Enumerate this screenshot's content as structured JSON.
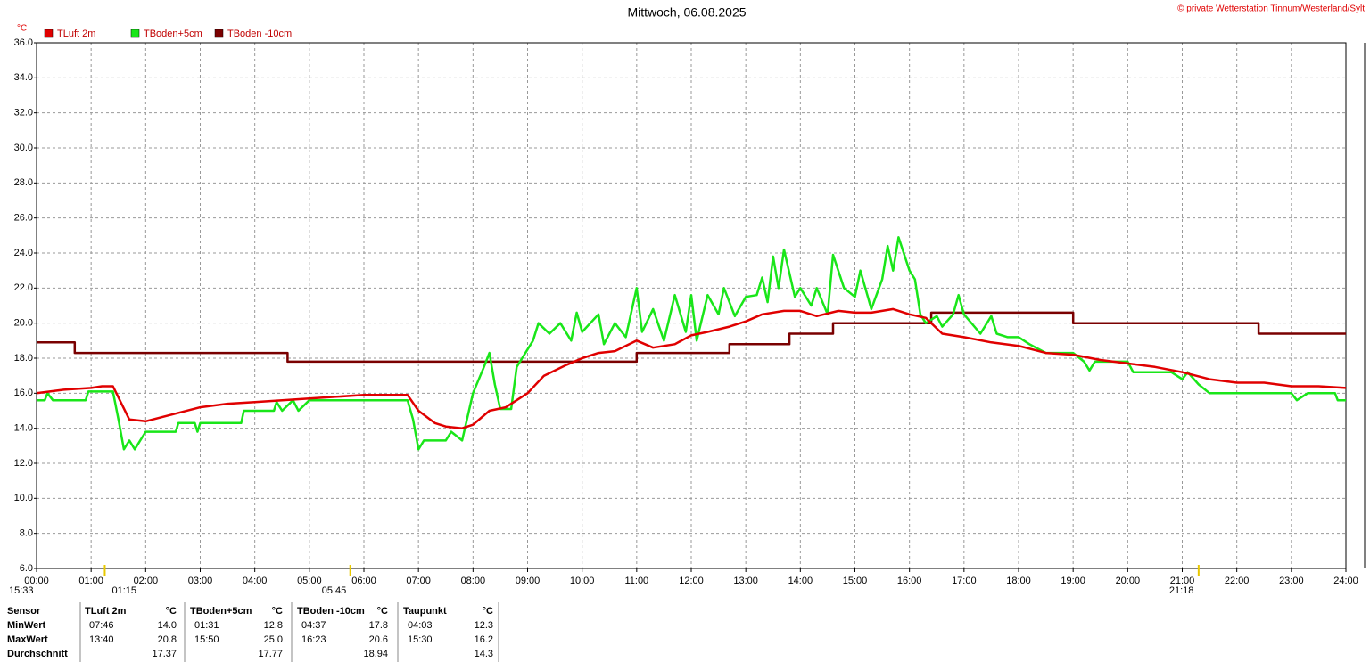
{
  "chart_data": {
    "type": "line",
    "title": "Mittwoch, 06.08.2025",
    "copyright": "© private Wetterstation Tinnum/Westerland/Sylt",
    "y_label": "°C",
    "xlim": [
      0,
      24
    ],
    "ylim": [
      6,
      36
    ],
    "grid": true,
    "legend": "top-left",
    "xticks": [
      {
        "value": 0,
        "label": "00:00"
      },
      {
        "value": 1,
        "label": "01:00"
      },
      {
        "value": 2,
        "label": "02:00"
      },
      {
        "value": 3,
        "label": "03:00"
      },
      {
        "value": 4,
        "label": "04:00"
      },
      {
        "value": 5,
        "label": "05:00"
      },
      {
        "value": 6,
        "label": "06:00"
      },
      {
        "value": 7,
        "label": "07:00"
      },
      {
        "value": 8,
        "label": "08:00"
      },
      {
        "value": 9,
        "label": "09:00"
      },
      {
        "value": 10,
        "label": "10:00"
      },
      {
        "value": 11,
        "label": "11:00"
      },
      {
        "value": 12,
        "label": "12:00"
      },
      {
        "value": 13,
        "label": "13:00"
      },
      {
        "value": 14,
        "label": "14:00"
      },
      {
        "value": 15,
        "label": "15:00"
      },
      {
        "value": 16,
        "label": "16:00"
      },
      {
        "value": 17,
        "label": "17:00"
      },
      {
        "value": 18,
        "label": "18:00"
      },
      {
        "value": 19,
        "label": "19:00"
      },
      {
        "value": 20,
        "label": "20:00"
      },
      {
        "value": 21,
        "label": "21:00"
      },
      {
        "value": 22,
        "label": "22:00"
      },
      {
        "value": 23,
        "label": "23:00"
      },
      {
        "value": 24,
        "label": "24:00"
      }
    ],
    "yticks": [
      {
        "value": 6,
        "label": "6.0"
      },
      {
        "value": 8,
        "label": "8.0"
      },
      {
        "value": 10,
        "label": "10.0"
      },
      {
        "value": 12,
        "label": "12.0"
      },
      {
        "value": 14,
        "label": "14.0"
      },
      {
        "value": 16,
        "label": "16.0"
      },
      {
        "value": 18,
        "label": "18.0"
      },
      {
        "value": 20,
        "label": "20.0"
      },
      {
        "value": 22,
        "label": "22.0"
      },
      {
        "value": 24,
        "label": "24.0"
      },
      {
        "value": 26,
        "label": "26.0"
      },
      {
        "value": 28,
        "label": "28.0"
      },
      {
        "value": 30,
        "label": "30.0"
      },
      {
        "value": 32,
        "label": "32.0"
      },
      {
        "value": 34,
        "label": "34.0"
      },
      {
        "value": 36,
        "label": "36.0"
      }
    ],
    "annotations": [
      {
        "label": "15:33"
      },
      {
        "label": "01:15",
        "x": 1.25
      },
      {
        "label": "05:45",
        "x": 5.75
      },
      {
        "label": "21:18",
        "x": 21.3
      }
    ],
    "series": [
      {
        "name": "TLuft 2m",
        "color": "#e00000",
        "x": [
          0,
          0.5,
          1.0,
          1.2,
          1.4,
          1.7,
          2.0,
          2.5,
          3.0,
          3.5,
          4.0,
          4.5,
          5.0,
          5.5,
          6.0,
          6.5,
          6.8,
          7.0,
          7.3,
          7.5,
          7.8,
          8.0,
          8.3,
          8.6,
          9.0,
          9.3,
          9.7,
          10.0,
          10.3,
          10.6,
          11.0,
          11.3,
          11.7,
          12.0,
          12.3,
          12.7,
          13.0,
          13.3,
          13.7,
          14.0,
          14.3,
          14.7,
          15.0,
          15.3,
          15.7,
          16.0,
          16.3,
          16.6,
          17.0,
          17.5,
          18.0,
          18.5,
          19.0,
          19.5,
          20.0,
          20.5,
          21.0,
          21.5,
          22.0,
          22.5,
          23.0,
          23.5,
          24
        ],
        "values": [
          16.0,
          16.2,
          16.3,
          16.4,
          16.4,
          14.5,
          14.4,
          14.8,
          15.2,
          15.4,
          15.5,
          15.6,
          15.7,
          15.8,
          15.9,
          15.9,
          15.9,
          15.0,
          14.3,
          14.1,
          14.0,
          14.2,
          15.0,
          15.2,
          16.0,
          17.0,
          17.6,
          18.0,
          18.3,
          18.4,
          19.0,
          18.6,
          18.8,
          19.3,
          19.5,
          19.8,
          20.1,
          20.5,
          20.7,
          20.7,
          20.4,
          20.7,
          20.6,
          20.6,
          20.8,
          20.5,
          20.3,
          19.4,
          19.2,
          18.9,
          18.7,
          18.3,
          18.2,
          17.9,
          17.7,
          17.5,
          17.2,
          16.8,
          16.6,
          16.6,
          16.4,
          16.4,
          16.3
        ]
      },
      {
        "name": "TBoden+5cm",
        "color": "#19e619",
        "x": [
          0,
          0.15,
          0.2,
          0.3,
          0.9,
          0.95,
          1.4,
          1.5,
          1.6,
          1.7,
          1.8,
          1.9,
          2.0,
          2.55,
          2.6,
          2.9,
          2.95,
          3.0,
          3.75,
          3.8,
          4.35,
          4.4,
          4.5,
          4.7,
          4.8,
          5.0,
          6.8,
          6.9,
          7.0,
          7.1,
          7.5,
          7.6,
          7.8,
          8.0,
          8.2,
          8.3,
          8.4,
          8.5,
          8.7,
          8.8,
          8.9,
          9.1,
          9.2,
          9.4,
          9.6,
          9.8,
          9.9,
          10.0,
          10.3,
          10.4,
          10.6,
          10.8,
          11.0,
          11.1,
          11.3,
          11.5,
          11.7,
          11.9,
          12.0,
          12.1,
          12.3,
          12.5,
          12.6,
          12.8,
          13.0,
          13.2,
          13.3,
          13.4,
          13.5,
          13.6,
          13.7,
          13.9,
          14.0,
          14.2,
          14.3,
          14.5,
          14.6,
          14.8,
          15.0,
          15.1,
          15.3,
          15.5,
          15.6,
          15.7,
          15.8,
          16.0,
          16.1,
          16.2,
          16.3,
          16.5,
          16.6,
          16.8,
          16.9,
          17.0,
          17.3,
          17.5,
          17.6,
          17.8,
          18.0,
          18.2,
          18.5,
          19.0,
          19.2,
          19.3,
          19.4,
          20.0,
          20.1,
          20.8,
          21.0,
          21.1,
          21.3,
          21.5,
          23.0,
          23.1,
          23.3,
          23.8,
          23.85,
          24
        ],
        "values": [
          15.6,
          15.6,
          16.0,
          15.6,
          15.6,
          16.1,
          16.1,
          14.5,
          12.8,
          13.3,
          12.8,
          13.3,
          13.8,
          13.8,
          14.3,
          14.3,
          13.8,
          14.3,
          14.3,
          15.0,
          15.0,
          15.5,
          15.0,
          15.6,
          15.0,
          15.6,
          15.6,
          14.5,
          12.8,
          13.3,
          13.3,
          13.8,
          13.3,
          16.0,
          17.5,
          18.3,
          16.5,
          15.1,
          15.1,
          17.5,
          18.0,
          19.0,
          20.0,
          19.4,
          20.0,
          19.0,
          20.6,
          19.5,
          20.5,
          18.8,
          20.0,
          19.2,
          22.0,
          19.5,
          20.8,
          19.0,
          21.6,
          19.5,
          21.6,
          19.0,
          21.6,
          20.5,
          22.0,
          20.4,
          21.5,
          21.6,
          22.6,
          21.2,
          23.8,
          22.0,
          24.2,
          21.5,
          22.0,
          21.0,
          22.0,
          20.5,
          23.9,
          22.0,
          21.5,
          23.0,
          20.8,
          22.5,
          24.4,
          23.0,
          24.9,
          23.0,
          22.5,
          20.5,
          20.0,
          20.4,
          19.8,
          20.5,
          21.6,
          20.5,
          19.4,
          20.4,
          19.4,
          19.2,
          19.2,
          18.8,
          18.3,
          18.3,
          17.8,
          17.3,
          17.8,
          17.8,
          17.2,
          17.2,
          16.8,
          17.2,
          16.5,
          16.0,
          16.0,
          15.6,
          16.0,
          16.0,
          15.6,
          15.6
        ]
      },
      {
        "name": "TBoden -10cm",
        "color": "#7a0000",
        "x": [
          0,
          0.7,
          0.7,
          4.6,
          4.6,
          11.0,
          11.0,
          12.7,
          12.7,
          13.8,
          13.8,
          14.6,
          14.6,
          16.4,
          16.4,
          19.0,
          19.0,
          22.4,
          22.4,
          24
        ],
        "values": [
          18.9,
          18.9,
          18.3,
          18.3,
          17.8,
          17.8,
          18.3,
          18.3,
          18.8,
          18.8,
          19.4,
          19.4,
          20.0,
          20.0,
          20.6,
          20.6,
          20.0,
          20.0,
          19.4,
          19.4
        ]
      }
    ]
  },
  "table": {
    "headers": [
      "Sensor",
      "TLuft 2m",
      "°C",
      "TBoden+5cm",
      "°C",
      "TBoden -10cm",
      "°C",
      "Taupunkt",
      "°C"
    ],
    "rows": [
      [
        "MinWert",
        "07:46",
        "14.0",
        "01:31",
        "12.8",
        "04:37",
        "17.8",
        "04:03",
        "12.3"
      ],
      [
        "MaxWert",
        "13:40",
        "20.8",
        "15:50",
        "25.0",
        "16:23",
        "20.6",
        "15:30",
        "16.2"
      ],
      [
        "Durchschnitt",
        null,
        "17.37",
        null,
        "17.77",
        null,
        "18.94",
        null,
        "14.3"
      ]
    ]
  }
}
